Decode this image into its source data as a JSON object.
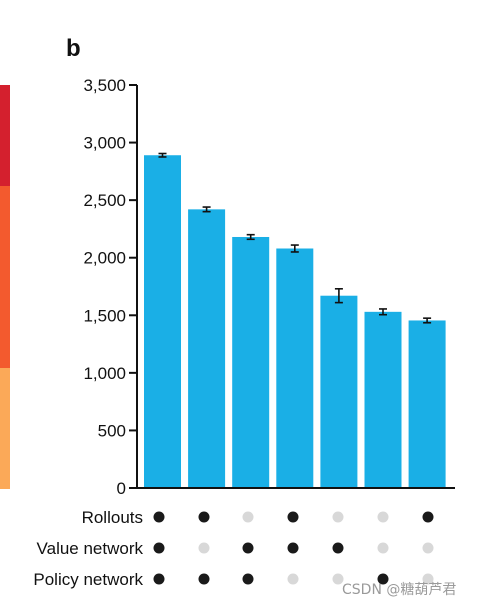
{
  "panel_label": "b",
  "watermark": "CSDN @糖葫芦君",
  "strip_colors": [
    "#d4202e",
    "#f35a2e",
    "#fba958"
  ],
  "bar_color": "#1aafe6",
  "dot_on_color": "#1a1a1a",
  "dot_off_color": "#d8d8d8",
  "chart_data": {
    "type": "bar",
    "title": "",
    "xlabel": "",
    "ylabel": "",
    "ylim": [
      0,
      3500
    ],
    "yticks": [
      0,
      500,
      1000,
      1500,
      2000,
      2500,
      3000,
      3500
    ],
    "ytick_labels": [
      "0",
      "500",
      "1,000",
      "1,500",
      "2,000",
      "2,500",
      "3,000",
      "3,500"
    ],
    "values": [
      2890,
      2420,
      2180,
      2080,
      1670,
      1530,
      1455
    ],
    "errors": [
      15,
      20,
      20,
      30,
      60,
      25,
      20
    ],
    "rows": [
      {
        "label": "Rollouts",
        "flags": [
          1,
          1,
          0,
          1,
          0,
          0,
          1
        ]
      },
      {
        "label": "Value network",
        "flags": [
          1,
          0,
          1,
          1,
          1,
          0,
          0
        ]
      },
      {
        "label": "Policy network",
        "flags": [
          1,
          1,
          1,
          0,
          0,
          1,
          0
        ]
      }
    ]
  }
}
